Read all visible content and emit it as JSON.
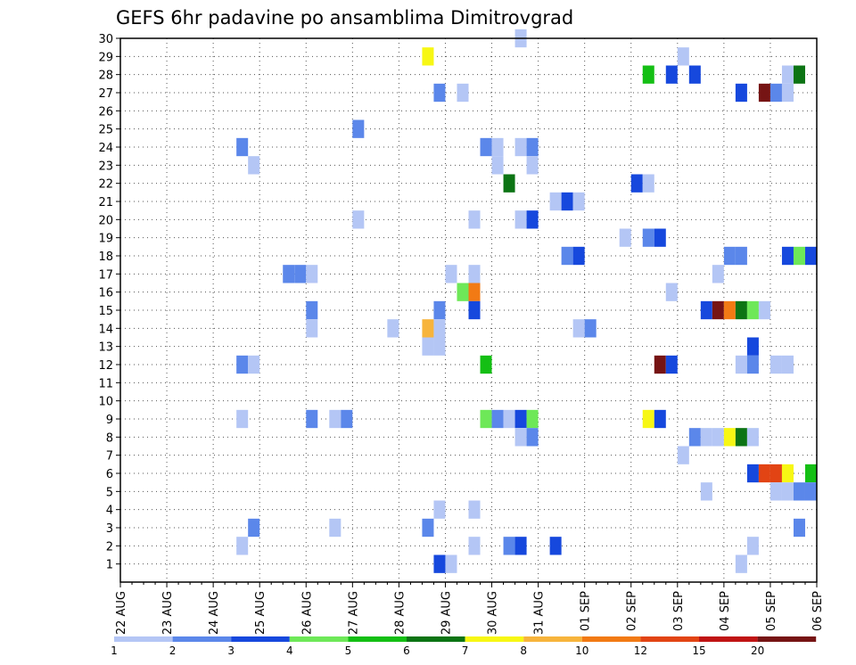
{
  "chart_data": {
    "type": "heatmap",
    "title": "GEFS 6hr padavine po ansamblima Dimitrovgrad",
    "xlabel": "",
    "ylabel": "",
    "x_ticks": [
      "22 AUG",
      "23 AUG",
      "24 AUG",
      "25 AUG",
      "26 AUG",
      "27 AUG",
      "28 AUG",
      "29 AUG",
      "30 AUG",
      "31 AUG",
      "01 SEP",
      "02 SEP",
      "03 SEP",
      "04 SEP",
      "05 SEP",
      "06 SEP"
    ],
    "x_unit": "6-hour step (4 steps per day), step 0 = 22 AUG",
    "xlim": [
      0,
      60
    ],
    "y_ticks": [
      1,
      2,
      3,
      4,
      5,
      6,
      7,
      8,
      9,
      10,
      11,
      12,
      13,
      14,
      15,
      16,
      17,
      18,
      19,
      20,
      21,
      22,
      23,
      24,
      25,
      26,
      27,
      28,
      29,
      30
    ],
    "ylim": [
      0,
      30
    ],
    "grid": true,
    "legend_position": "bottom",
    "color_scale": {
      "labels": [
        "1",
        "2",
        "3",
        "4",
        "5",
        "6",
        "7",
        "8",
        "10",
        "12",
        "15",
        "20"
      ],
      "colors": [
        "#b4c6f5",
        "#5b87ea",
        "#1648dd",
        "#6ee858",
        "#14bf14",
        "#0c7414",
        "#f7f714",
        "#f7b43c",
        "#f27a14",
        "#e24414",
        "#c01414",
        "#761414"
      ]
    },
    "cells": [
      {
        "x": 34.5,
        "y": 30,
        "c": 0
      },
      {
        "x": 26.5,
        "y": 29,
        "c": 6
      },
      {
        "x": 48.5,
        "y": 29,
        "c": 0
      },
      {
        "x": 45.5,
        "y": 28,
        "c": 4
      },
      {
        "x": 47.5,
        "y": 28,
        "c": 2
      },
      {
        "x": 49.5,
        "y": 28,
        "c": 2
      },
      {
        "x": 57.5,
        "y": 28,
        "c": 0
      },
      {
        "x": 58.5,
        "y": 28,
        "c": 5
      },
      {
        "x": 27.5,
        "y": 27,
        "c": 1
      },
      {
        "x": 29.5,
        "y": 27,
        "c": 0
      },
      {
        "x": 53.5,
        "y": 27,
        "c": 2
      },
      {
        "x": 55.5,
        "y": 27,
        "c": 11
      },
      {
        "x": 56.5,
        "y": 27,
        "c": 1
      },
      {
        "x": 57.5,
        "y": 27,
        "c": 0
      },
      {
        "x": 20.5,
        "y": 25,
        "c": 1
      },
      {
        "x": 10.5,
        "y": 24,
        "c": 1
      },
      {
        "x": 31.5,
        "y": 24,
        "c": 1
      },
      {
        "x": 32.5,
        "y": 24,
        "c": 0
      },
      {
        "x": 34.5,
        "y": 24,
        "c": 0
      },
      {
        "x": 35.5,
        "y": 24,
        "c": 1
      },
      {
        "x": 11.5,
        "y": 23,
        "c": 0
      },
      {
        "x": 32.5,
        "y": 23,
        "c": 0
      },
      {
        "x": 35.5,
        "y": 23,
        "c": 0
      },
      {
        "x": 33.5,
        "y": 22,
        "c": 5
      },
      {
        "x": 44.5,
        "y": 22,
        "c": 2
      },
      {
        "x": 45.5,
        "y": 22,
        "c": 0
      },
      {
        "x": 37.5,
        "y": 21,
        "c": 0
      },
      {
        "x": 38.5,
        "y": 21,
        "c": 2
      },
      {
        "x": 39.5,
        "y": 21,
        "c": 0
      },
      {
        "x": 20.5,
        "y": 20,
        "c": 0
      },
      {
        "x": 30.5,
        "y": 20,
        "c": 0
      },
      {
        "x": 34.5,
        "y": 20,
        "c": 0
      },
      {
        "x": 35.5,
        "y": 20,
        "c": 2
      },
      {
        "x": 43.5,
        "y": 19,
        "c": 0
      },
      {
        "x": 45.5,
        "y": 19,
        "c": 1
      },
      {
        "x": 46.5,
        "y": 19,
        "c": 2
      },
      {
        "x": 38.5,
        "y": 18,
        "c": 1
      },
      {
        "x": 39.5,
        "y": 18,
        "c": 2
      },
      {
        "x": 52.5,
        "y": 18,
        "c": 1
      },
      {
        "x": 53.5,
        "y": 18,
        "c": 1
      },
      {
        "x": 57.5,
        "y": 18,
        "c": 2
      },
      {
        "x": 58.5,
        "y": 18,
        "c": 3
      },
      {
        "x": 59.5,
        "y": 18,
        "c": 2
      },
      {
        "x": 14.5,
        "y": 17,
        "c": 1
      },
      {
        "x": 15.5,
        "y": 17,
        "c": 1
      },
      {
        "x": 16.5,
        "y": 17,
        "c": 0
      },
      {
        "x": 28.5,
        "y": 17,
        "c": 0
      },
      {
        "x": 30.5,
        "y": 17,
        "c": 0
      },
      {
        "x": 51.5,
        "y": 17,
        "c": 0
      },
      {
        "x": 29.5,
        "y": 16,
        "c": 3
      },
      {
        "x": 30.5,
        "y": 16,
        "c": 8
      },
      {
        "x": 47.5,
        "y": 16,
        "c": 0
      },
      {
        "x": 16.5,
        "y": 15,
        "c": 1
      },
      {
        "x": 27.5,
        "y": 15,
        "c": 1
      },
      {
        "x": 30.5,
        "y": 15,
        "c": 2
      },
      {
        "x": 50.5,
        "y": 15,
        "c": 2
      },
      {
        "x": 51.5,
        "y": 15,
        "c": 11
      },
      {
        "x": 52.5,
        "y": 15,
        "c": 8
      },
      {
        "x": 53.5,
        "y": 15,
        "c": 5
      },
      {
        "x": 54.5,
        "y": 15,
        "c": 3
      },
      {
        "x": 55.5,
        "y": 15,
        "c": 0
      },
      {
        "x": 16.5,
        "y": 14,
        "c": 0
      },
      {
        "x": 23.5,
        "y": 14,
        "c": 0
      },
      {
        "x": 26.5,
        "y": 14,
        "c": 7
      },
      {
        "x": 27.5,
        "y": 14,
        "c": 0
      },
      {
        "x": 39.5,
        "y": 14,
        "c": 0
      },
      {
        "x": 40.5,
        "y": 14,
        "c": 1
      },
      {
        "x": 26.5,
        "y": 13,
        "c": 0
      },
      {
        "x": 27.5,
        "y": 13,
        "c": 0
      },
      {
        "x": 54.5,
        "y": 13,
        "c": 2
      },
      {
        "x": 10.5,
        "y": 12,
        "c": 1
      },
      {
        "x": 11.5,
        "y": 12,
        "c": 0
      },
      {
        "x": 31.5,
        "y": 12,
        "c": 4
      },
      {
        "x": 46.5,
        "y": 12,
        "c": 11
      },
      {
        "x": 47.5,
        "y": 12,
        "c": 2
      },
      {
        "x": 53.5,
        "y": 12,
        "c": 0
      },
      {
        "x": 54.5,
        "y": 12,
        "c": 1
      },
      {
        "x": 56.5,
        "y": 12,
        "c": 0
      },
      {
        "x": 57.5,
        "y": 12,
        "c": 0
      },
      {
        "x": 10.5,
        "y": 9,
        "c": 0
      },
      {
        "x": 16.5,
        "y": 9,
        "c": 1
      },
      {
        "x": 18.5,
        "y": 9,
        "c": 0
      },
      {
        "x": 19.5,
        "y": 9,
        "c": 1
      },
      {
        "x": 31.5,
        "y": 9,
        "c": 3
      },
      {
        "x": 32.5,
        "y": 9,
        "c": 1
      },
      {
        "x": 33.5,
        "y": 9,
        "c": 0
      },
      {
        "x": 34.5,
        "y": 9,
        "c": 2
      },
      {
        "x": 35.5,
        "y": 9,
        "c": 3
      },
      {
        "x": 45.5,
        "y": 9,
        "c": 6
      },
      {
        "x": 46.5,
        "y": 9,
        "c": 2
      },
      {
        "x": 34.5,
        "y": 8,
        "c": 0
      },
      {
        "x": 35.5,
        "y": 8,
        "c": 1
      },
      {
        "x": 49.5,
        "y": 8,
        "c": 1
      },
      {
        "x": 50.5,
        "y": 8,
        "c": 0
      },
      {
        "x": 51.5,
        "y": 8,
        "c": 0
      },
      {
        "x": 52.5,
        "y": 8,
        "c": 6
      },
      {
        "x": 53.5,
        "y": 8,
        "c": 5
      },
      {
        "x": 54.5,
        "y": 8,
        "c": 0
      },
      {
        "x": 48.5,
        "y": 7,
        "c": 0
      },
      {
        "x": 54.5,
        "y": 6,
        "c": 2
      },
      {
        "x": 55.5,
        "y": 6,
        "c": 9
      },
      {
        "x": 56.5,
        "y": 6,
        "c": 9
      },
      {
        "x": 57.5,
        "y": 6,
        "c": 6
      },
      {
        "x": 59.5,
        "y": 6,
        "c": 4
      },
      {
        "x": 50.5,
        "y": 5,
        "c": 0
      },
      {
        "x": 56.5,
        "y": 5,
        "c": 0
      },
      {
        "x": 57.5,
        "y": 5,
        "c": 0
      },
      {
        "x": 58.5,
        "y": 5,
        "c": 1
      },
      {
        "x": 59.5,
        "y": 5,
        "c": 1
      },
      {
        "x": 27.5,
        "y": 4,
        "c": 0
      },
      {
        "x": 30.5,
        "y": 4,
        "c": 0
      },
      {
        "x": 11.5,
        "y": 3,
        "c": 1
      },
      {
        "x": 18.5,
        "y": 3,
        "c": 0
      },
      {
        "x": 26.5,
        "y": 3,
        "c": 1
      },
      {
        "x": 58.5,
        "y": 3,
        "c": 1
      },
      {
        "x": 10.5,
        "y": 2,
        "c": 0
      },
      {
        "x": 30.5,
        "y": 2,
        "c": 0
      },
      {
        "x": 33.5,
        "y": 2,
        "c": 1
      },
      {
        "x": 34.5,
        "y": 2,
        "c": 2
      },
      {
        "x": 37.5,
        "y": 2,
        "c": 2
      },
      {
        "x": 54.5,
        "y": 2,
        "c": 0
      },
      {
        "x": 27.5,
        "y": 1,
        "c": 2
      },
      {
        "x": 28.5,
        "y": 1,
        "c": 0
      },
      {
        "x": 53.5,
        "y": 1,
        "c": 0
      }
    ]
  }
}
